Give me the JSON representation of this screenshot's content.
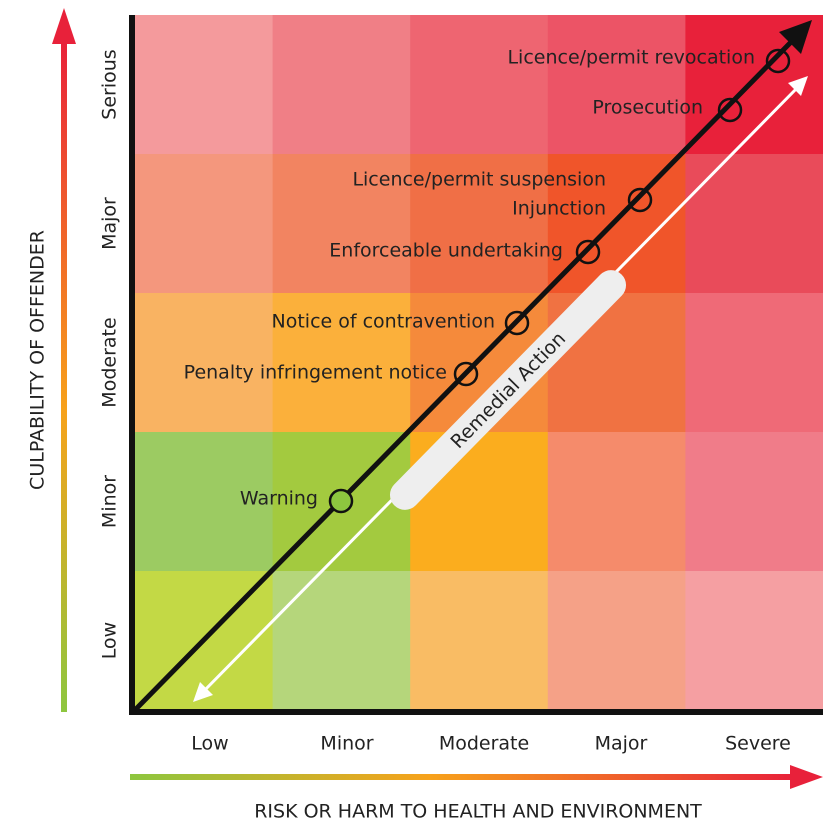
{
  "y_axis": {
    "title": "CULPABILITY OF OFFENDER",
    "levels": [
      "Low",
      "Minor",
      "Moderate",
      "Major",
      "Serious"
    ]
  },
  "x_axis": {
    "title": "RISK OR HARM TO HEALTH AND ENVIRONMENT",
    "levels": [
      "Low",
      "Minor",
      "Moderate",
      "Major",
      "Severe"
    ]
  },
  "markers": [
    {
      "labels": [
        "Warning"
      ]
    },
    {
      "labels": [
        "Penalty infringement notice"
      ]
    },
    {
      "labels": [
        "Notice of contravention"
      ]
    },
    {
      "labels": [
        "Enforceable undertaking"
      ]
    },
    {
      "labels": [
        "Licence/permit suspension",
        "Injunction"
      ]
    },
    {
      "labels": [
        "Prosecution"
      ]
    },
    {
      "labels": [
        "Licence/permit revocation"
      ]
    }
  ],
  "remedial_label": "Remedial Action"
}
